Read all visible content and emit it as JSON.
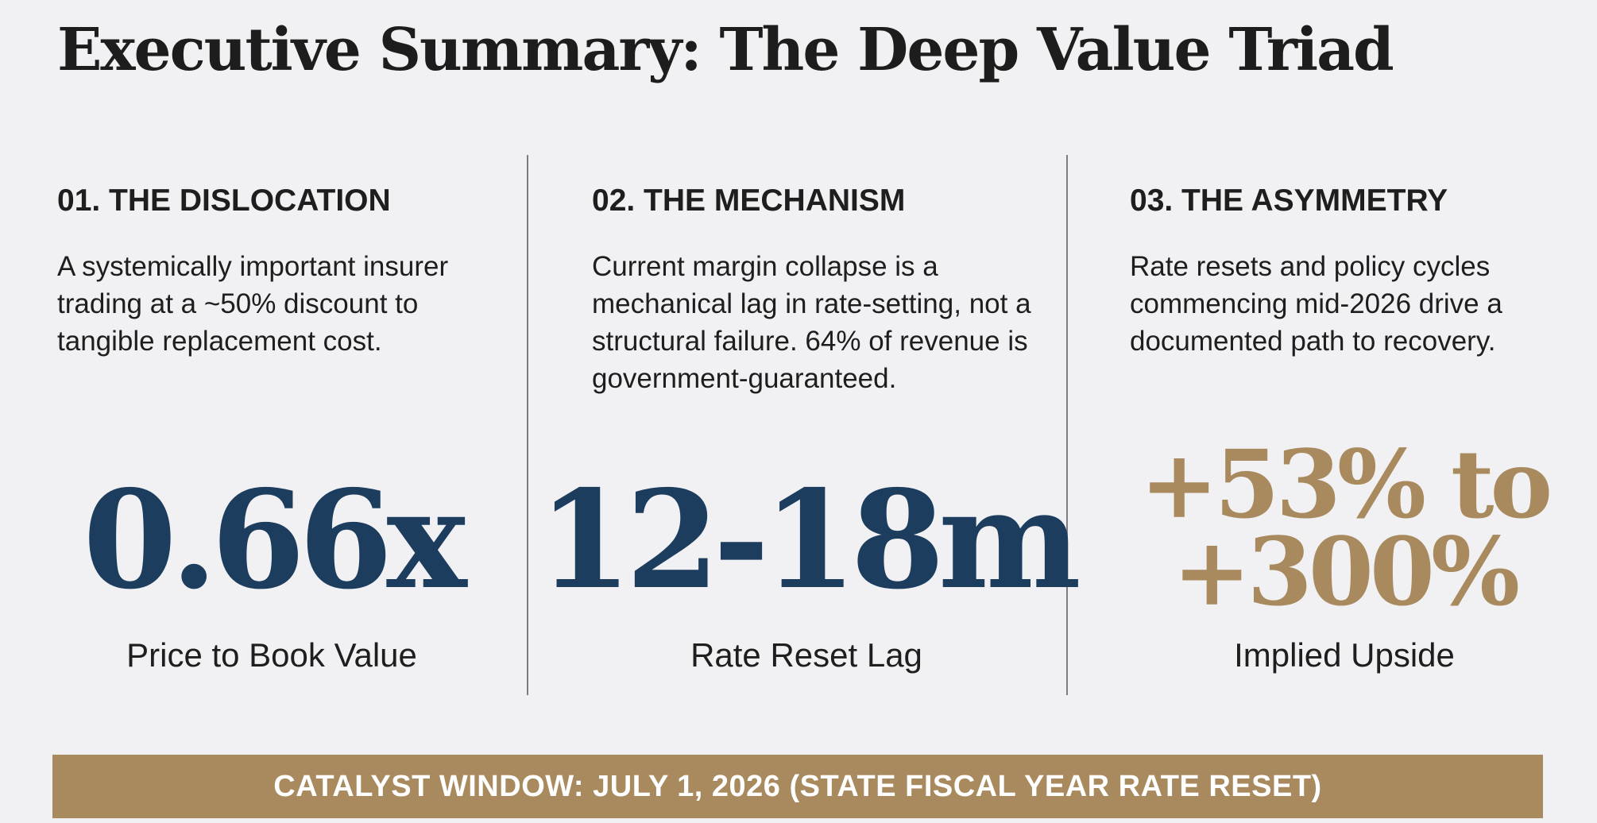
{
  "title": "Executive Summary: The Deep Value Triad",
  "columns": [
    {
      "heading": "01. THE DISLOCATION",
      "body": "A systemically important insurer trading at a ~50% discount to tangible replacement cost.",
      "metric": "0.66x",
      "metric_label": "Price to Book Value"
    },
    {
      "heading": "02. THE MECHANISM",
      "body": "Current margin collapse is a mechanical lag in rate-setting, not a structural failure. 64% of revenue is government-guaranteed.",
      "metric": "12-18m",
      "metric_label": "Rate Reset Lag"
    },
    {
      "heading": "03. THE ASYMMETRY",
      "body": "Rate resets and policy cycles commencing mid-2026 drive a documented path to recovery.",
      "metric_line1": "+53% to",
      "metric_line2": "+300%",
      "metric_label": "Implied Upside"
    }
  ],
  "banner": "CATALYST WINDOW: JULY 1, 2026 (STATE FISCAL YEAR RATE RESET)",
  "colors": {
    "background": "#f1f1f3",
    "navy": "#1d3d5f",
    "gold": "#a88a5e",
    "divider": "#7d7d86"
  }
}
